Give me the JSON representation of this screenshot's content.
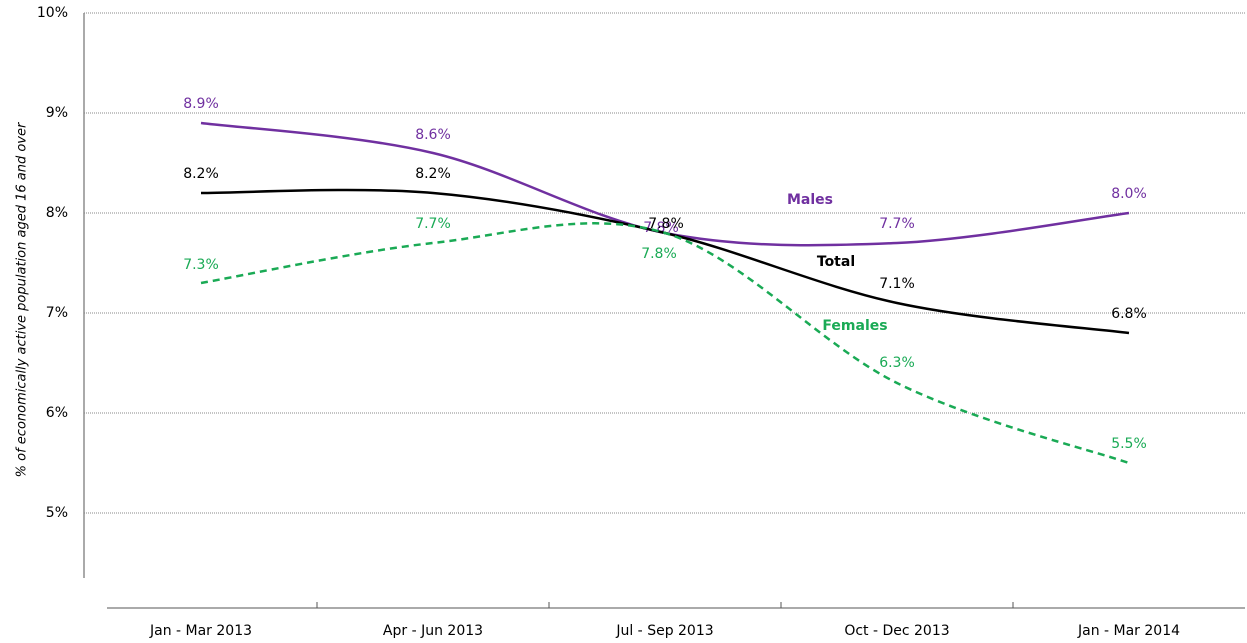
{
  "chart_data": {
    "type": "line",
    "y_label": "% of economically active population aged 16 and over",
    "categories": [
      "Jan - Mar 2013",
      "Apr - Jun 2013",
      "Jul - Sep 2013",
      "Oct - Dec 2013",
      "Jan - Mar 2014"
    ],
    "series": [
      {
        "name": "Males",
        "color": "#7030a0",
        "line_style": "solid",
        "values": [
          8.9,
          8.6,
          7.8,
          7.7,
          8.0
        ],
        "value_labels": [
          "8.9%",
          "8.6%",
          "7.8%",
          "7.7%",
          "8.0%"
        ]
      },
      {
        "name": "Total",
        "color": "#000000",
        "line_style": "solid",
        "values": [
          8.2,
          8.2,
          7.8,
          7.1,
          6.8
        ],
        "value_labels": [
          "8.2%",
          "8.2%",
          "7.8%",
          "7.1%",
          "6.8%"
        ]
      },
      {
        "name": "Females",
        "color": "#1aaa55",
        "line_style": "dashed",
        "values": [
          7.3,
          7.7,
          7.8,
          6.3,
          5.5
        ],
        "value_labels": [
          "7.3%",
          "7.7%",
          "7.8%",
          "6.3%",
          "5.5%"
        ]
      }
    ],
    "ylim": [
      4.35,
      10
    ],
    "yticks": [
      {
        "value": 5,
        "label": "5%"
      },
      {
        "value": 6,
        "label": "6%"
      },
      {
        "value": 7,
        "label": "7%"
      },
      {
        "value": 8,
        "label": "8%"
      },
      {
        "value": 9,
        "label": "9%"
      },
      {
        "value": 10,
        "label": "10%"
      }
    ],
    "grid": true
  }
}
